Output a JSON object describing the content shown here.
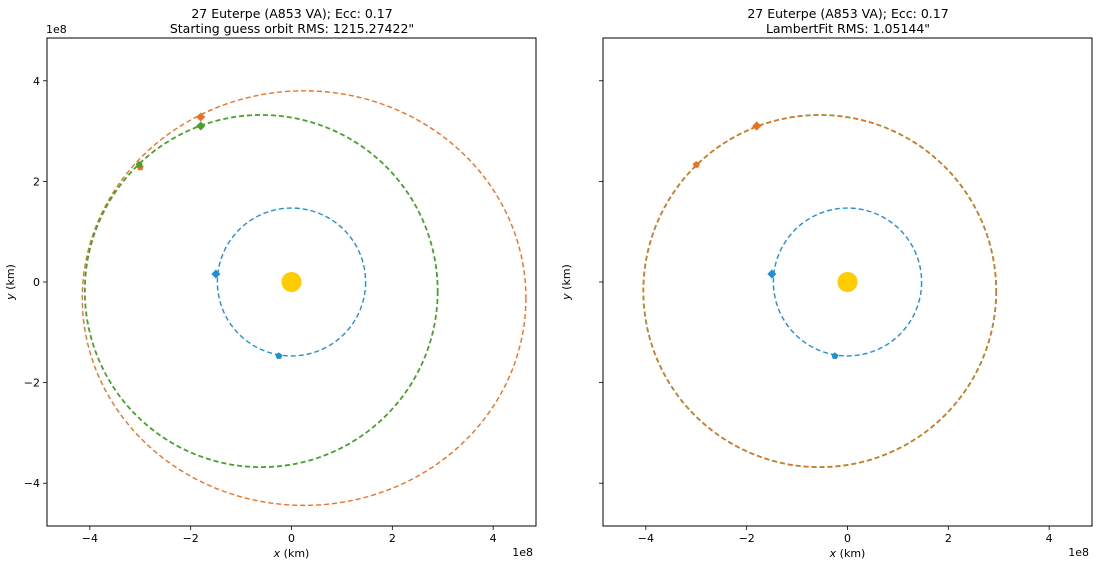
{
  "chart_data": [
    {
      "type": "scatter",
      "title": "27 Euterpe (A853 VA); Ecc: 0.17",
      "subtitle": "Starting guess orbit RMS: 1215.27422\"",
      "xlabel": "x (km)",
      "ylabel": "y (km)",
      "xlim": [
        -4.85,
        4.85
      ],
      "ylim": [
        -4.85,
        4.85
      ],
      "x_ticks": [
        -4,
        -2,
        0,
        2,
        4
      ],
      "y_ticks": [
        -4,
        -2,
        0,
        2,
        4
      ],
      "tick_labels": [
        "−4",
        "−2",
        "0",
        "2",
        "4"
      ],
      "x_exponent": "1e8",
      "y_exponent": "1e8",
      "show_y_tick_labels": true,
      "sun": {
        "x": 0,
        "y": 0,
        "color": "#ffcc00"
      },
      "orbits": [
        {
          "color": "#1f8fd6",
          "cx": 0,
          "cy": 0,
          "rx": 1.47,
          "ry": 1.47,
          "width": 1.4
        },
        {
          "color": "#f07020",
          "cx": 0.25,
          "cy": -0.32,
          "rx": 4.4,
          "ry": 4.12,
          "width": 1.4
        },
        {
          "color": "#4aa02c",
          "cx": -0.6,
          "cy": -0.18,
          "rx": 3.5,
          "ry": 3.5,
          "width": 1.8
        }
      ],
      "points": [
        {
          "x": -1.5,
          "y": 0.16,
          "color": "#1f8fd6",
          "marker": "diamond"
        },
        {
          "x": -0.25,
          "y": -1.47,
          "color": "#1f8fd6",
          "marker": "pentagon"
        },
        {
          "x": -1.8,
          "y": 3.28,
          "color": "#f07020",
          "marker": "diamond"
        },
        {
          "x": -1.8,
          "y": 3.1,
          "color": "#4aa02c",
          "marker": "diamond"
        },
        {
          "x": -3.0,
          "y": 2.28,
          "color": "#f07020",
          "marker": "pentagon"
        },
        {
          "x": -3.02,
          "y": 2.33,
          "color": "#4aa02c",
          "marker": "pentagon"
        }
      ]
    },
    {
      "type": "scatter",
      "title": "27 Euterpe (A853 VA); Ecc: 0.17",
      "subtitle": "LambertFit RMS: 1.05144\"",
      "xlabel": "x (km)",
      "ylabel": "y (km)",
      "xlim": [
        -4.85,
        4.85
      ],
      "ylim": [
        -4.85,
        4.85
      ],
      "x_ticks": [
        -4,
        -2,
        0,
        2,
        4
      ],
      "y_ticks": [
        -4,
        -2,
        0,
        2,
        4
      ],
      "tick_labels": [
        "−4",
        "−2",
        "0",
        "2",
        "4"
      ],
      "x_exponent": "1e8",
      "y_exponent": "",
      "show_y_tick_labels": false,
      "sun": {
        "x": 0,
        "y": 0,
        "color": "#ffcc00"
      },
      "orbits": [
        {
          "color": "#1f8fd6",
          "cx": 0,
          "cy": 0,
          "rx": 1.47,
          "ry": 1.47,
          "width": 1.4
        },
        {
          "color": "#4aa02c",
          "cx": -0.55,
          "cy": -0.18,
          "rx": 3.5,
          "ry": 3.5,
          "width": 1.8
        },
        {
          "color": "#f07020",
          "cx": -0.55,
          "cy": -0.18,
          "rx": 3.5,
          "ry": 3.5,
          "width": 1.3
        }
      ],
      "points": [
        {
          "x": -1.5,
          "y": 0.16,
          "color": "#1f8fd6",
          "marker": "diamond"
        },
        {
          "x": -0.25,
          "y": -1.47,
          "color": "#1f8fd6",
          "marker": "pentagon"
        },
        {
          "x": -1.8,
          "y": 3.1,
          "color": "#4aa02c",
          "marker": "diamond"
        },
        {
          "x": -1.8,
          "y": 3.1,
          "color": "#f07020",
          "marker": "diamond"
        },
        {
          "x": -3.0,
          "y": 2.33,
          "color": "#f07020",
          "marker": "pentagon"
        }
      ]
    }
  ]
}
